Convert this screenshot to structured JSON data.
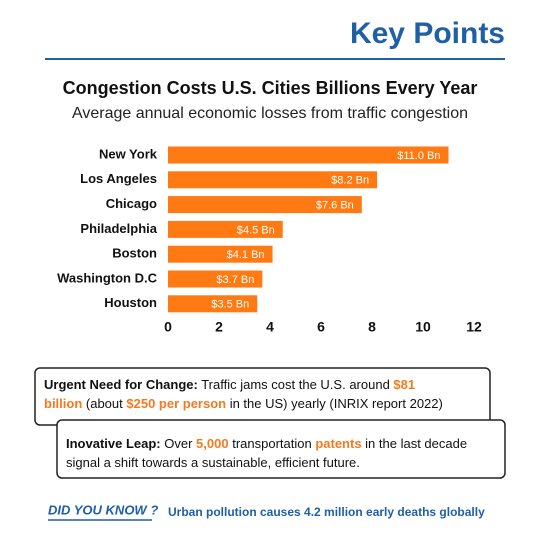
{
  "header": {
    "title": "Key Points"
  },
  "chart_data": {
    "type": "bar",
    "orientation": "horizontal",
    "title": "Congestion Costs U.S. Cities Billions Every Year",
    "subtitle": "Average annual economic losses from traffic congestion",
    "categories": [
      "New York",
      "Los Angeles",
      "Chicago",
      "Philadelphia",
      "Boston",
      "Washington D.C",
      "Houston"
    ],
    "values": [
      11.0,
      8.2,
      7.6,
      4.5,
      4.1,
      3.7,
      3.5
    ],
    "value_labels": [
      "$11.0 Bn",
      "$8.2 Bn",
      "$7.6 Bn",
      "$4.5 Bn",
      "$4.1 Bn",
      "$3.7 Bn",
      "$3.5 Bn"
    ],
    "color": "#ff7a12",
    "xlim": [
      0,
      12
    ],
    "xticks": [
      0,
      2,
      4,
      6,
      8,
      10,
      12
    ],
    "grid": false
  },
  "callouts": [
    {
      "lines": [
        [
          {
            "text": "Urgent Need for Change:",
            "bold": true
          },
          {
            "text": " Traffic jams cost the U.S. around "
          },
          {
            "text": "$81",
            "bold": true,
            "color": "#f47a1f"
          }
        ],
        [
          {
            "text": "billion",
            "bold": true,
            "color": "#f47a1f"
          },
          {
            "text": " (about "
          },
          {
            "text": "$250 per person",
            "bold": true,
            "color": "#f47a1f"
          },
          {
            "text": " in the US) yearly (INRIX report 2022)"
          }
        ]
      ]
    },
    {
      "lines": [
        [
          {
            "text": "Inovative Leap:",
            "bold": true
          },
          {
            "text": " Over "
          },
          {
            "text": "5,000",
            "bold": true,
            "color": "#f47a1f"
          },
          {
            "text": " transportation "
          },
          {
            "text": "patents",
            "bold": true,
            "color": "#f47a1f"
          },
          {
            "text": " in the last decade"
          }
        ],
        [
          {
            "text": "signal a shift towards a sustainable, efficient future."
          }
        ]
      ]
    }
  ],
  "footer": {
    "label": "DID YOU KNOW ?",
    "text": "Urban pollution causes 4.2 million early deaths globally"
  }
}
